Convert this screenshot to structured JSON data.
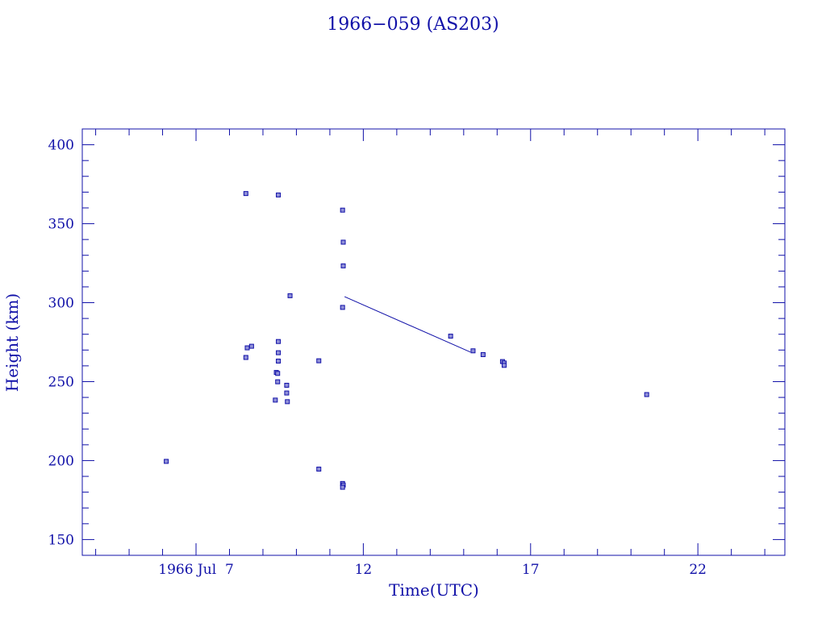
{
  "colors": {
    "ink": "#1010a8",
    "background": "#ffffff"
  },
  "chart_data": {
    "type": "scatter",
    "title": "1966−059 (AS203)",
    "xlabel": "Time(UTC)",
    "ylabel": "Height (km)",
    "xlim": [
      3.6,
      24.6
    ],
    "ylim": [
      140,
      410
    ],
    "x_ticks": [
      {
        "value": 7,
        "label": "1966 Jul  7"
      },
      {
        "value": 12,
        "label": "12"
      },
      {
        "value": 17,
        "label": "17"
      },
      {
        "value": 22,
        "label": "22"
      }
    ],
    "y_ticks": [
      {
        "value": 150,
        "label": "150"
      },
      {
        "value": 200,
        "label": "200"
      },
      {
        "value": 250,
        "label": "250"
      },
      {
        "value": 300,
        "label": "300"
      },
      {
        "value": 350,
        "label": "350"
      },
      {
        "value": 400,
        "label": "400"
      }
    ],
    "grid": false,
    "points": [
      [
        6.11,
        199.5
      ],
      [
        8.49,
        369.1
      ],
      [
        8.49,
        265.3
      ],
      [
        8.53,
        271.4
      ],
      [
        8.66,
        272.4
      ],
      [
        9.4,
        255.8
      ],
      [
        9.44,
        255.2
      ],
      [
        9.44,
        249.9
      ],
      [
        9.46,
        268.3
      ],
      [
        9.46,
        263.0
      ],
      [
        9.46,
        275.4
      ],
      [
        9.46,
        368.2
      ],
      [
        9.37,
        238.3
      ],
      [
        9.71,
        247.7
      ],
      [
        9.71,
        242.8
      ],
      [
        9.73,
        237.3
      ],
      [
        9.81,
        304.4
      ],
      [
        10.67,
        263.2
      ],
      [
        10.67,
        194.6
      ],
      [
        11.38,
        358.6
      ],
      [
        11.4,
        338.3
      ],
      [
        11.4,
        323.3
      ],
      [
        11.38,
        297.0
      ],
      [
        11.38,
        185.5
      ],
      [
        11.4,
        184.5
      ],
      [
        11.38,
        183.1
      ],
      [
        14.61,
        278.8
      ],
      [
        15.28,
        269.5
      ],
      [
        15.58,
        267.1
      ],
      [
        16.16,
        262.7
      ],
      [
        16.21,
        261.8
      ],
      [
        16.21,
        260.3
      ],
      [
        20.47,
        241.8
      ]
    ],
    "trend_line": [
      [
        11.44,
        303.8
      ],
      [
        15.2,
        268.7
      ]
    ]
  }
}
